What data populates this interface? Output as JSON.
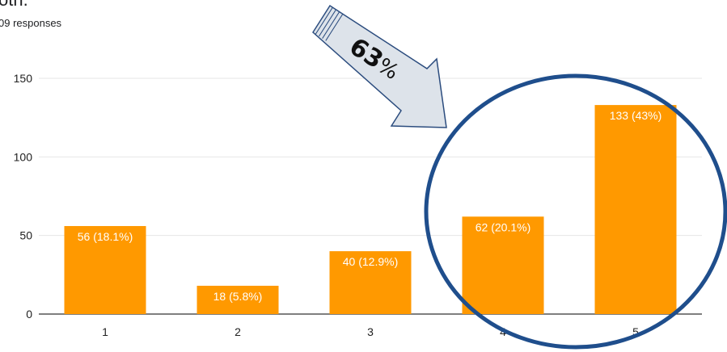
{
  "header": {
    "title_fragment": "oth.",
    "responses": "09 responses"
  },
  "annotation": {
    "arrow_text_number": "63",
    "arrow_text_symbol": "%"
  },
  "colors": {
    "bar": "#ff9900",
    "grid": "#e6e6e6",
    "axis": "#333333",
    "circle": "#1f4e8c",
    "arrow_fill": "#dde3ea",
    "arrow_stroke": "#2b4c7e"
  },
  "chart_data": {
    "type": "bar",
    "categories": [
      "1",
      "2",
      "3",
      "4",
      "5"
    ],
    "values": [
      56,
      18,
      40,
      62,
      133
    ],
    "data_labels": [
      "56 (18.1%)",
      "18 (5.8%)",
      "40 (12.9%)",
      "62 (20.1%)",
      "133 (43%)"
    ],
    "yticks": [
      "0",
      "50",
      "100",
      "150"
    ],
    "ylim": [
      0,
      150
    ],
    "grid": true,
    "title": "",
    "xlabel": "",
    "ylabel": ""
  }
}
